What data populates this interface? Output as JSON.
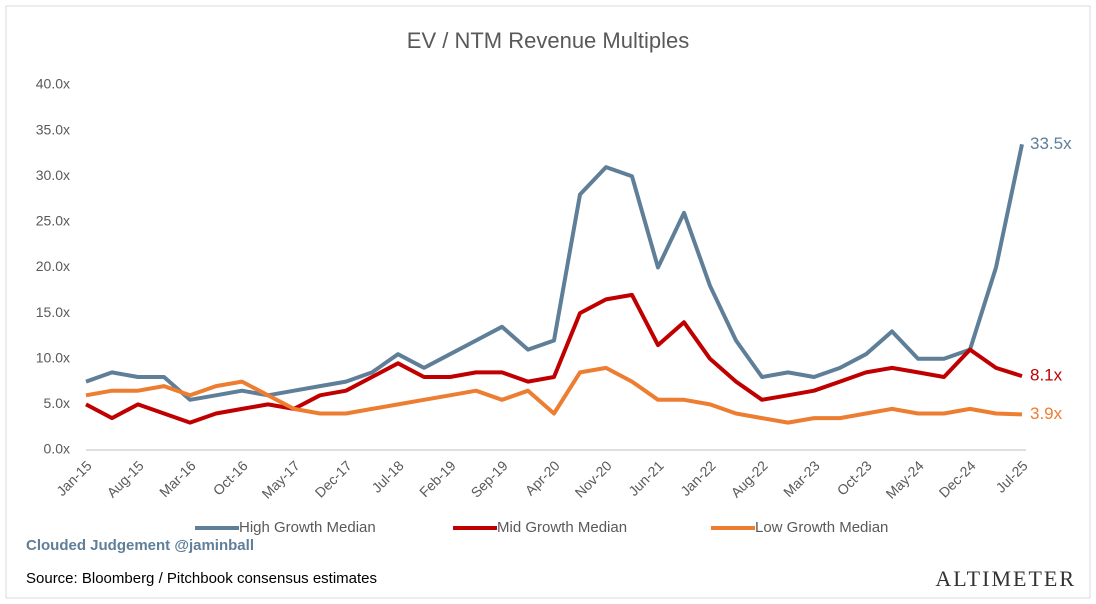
{
  "chart_data": {
    "type": "line",
    "title": "EV / NTM Revenue Multiples",
    "categories": [
      "Jan-15",
      null,
      "Aug-15",
      null,
      "Mar-16",
      null,
      "Oct-16",
      null,
      "May-17",
      null,
      "Dec-17",
      null,
      "Jul-18",
      null,
      "Feb-19",
      null,
      "Sep-19",
      null,
      "Apr-20",
      null,
      "Nov-20",
      null,
      "Jun-21",
      null,
      "Jan-22",
      null,
      "Aug-22",
      null,
      "Mar-23",
      null,
      "Oct-23",
      null,
      "May-24",
      null,
      "Dec-24",
      null,
      "Jul-25"
    ],
    "series": [
      {
        "name": "High Growth Median",
        "color": "#5f7f99",
        "values": [
          7.5,
          8.5,
          8,
          8,
          5.5,
          6,
          6.5,
          6,
          6.5,
          7,
          7.5,
          8.5,
          10.5,
          9,
          10.5,
          12,
          13.5,
          11,
          12,
          28,
          31,
          30,
          20,
          26,
          18,
          12,
          8,
          8.5,
          8,
          9,
          10.5,
          13,
          10,
          10,
          11,
          20,
          33.5
        ],
        "value_labels": [
          null,
          null,
          null,
          null,
          null,
          null,
          null,
          null,
          null,
          null,
          null,
          null,
          null,
          null,
          null,
          null,
          null,
          null,
          null,
          null,
          null,
          null,
          null,
          null,
          null,
          null,
          null,
          null,
          null,
          null,
          null,
          null,
          null,
          null,
          null,
          null,
          "33.5x"
        ]
      },
      {
        "name": "Mid Growth Median",
        "color": "#c00000",
        "values": [
          5,
          3.5,
          5,
          4,
          3,
          4,
          4.5,
          5,
          4.5,
          6,
          6.5,
          8,
          9.5,
          8,
          8,
          8.5,
          8.5,
          7.5,
          8,
          15,
          16.5,
          17,
          11.5,
          14,
          10,
          7.5,
          5.5,
          6,
          6.5,
          7.5,
          8.5,
          9,
          8.5,
          8,
          11,
          9,
          8.1
        ],
        "value_labels": [
          null,
          null,
          null,
          null,
          null,
          null,
          null,
          null,
          null,
          null,
          null,
          null,
          null,
          null,
          null,
          null,
          null,
          null,
          null,
          null,
          null,
          null,
          null,
          null,
          null,
          null,
          null,
          null,
          null,
          null,
          null,
          null,
          null,
          null,
          null,
          null,
          "8.1x"
        ]
      },
      {
        "name": "Low Growth Median",
        "color": "#ed7d31",
        "values": [
          6,
          6.5,
          6.5,
          7,
          6,
          7,
          7.5,
          6,
          4.5,
          4,
          4,
          4.5,
          5,
          5.5,
          6,
          6.5,
          5.5,
          6.5,
          4,
          8.5,
          9,
          7.5,
          5.5,
          5.5,
          5,
          4,
          3.5,
          3,
          3.5,
          3.5,
          4,
          4.5,
          4,
          4,
          4.5,
          4,
          3.9
        ],
        "value_labels": [
          null,
          null,
          null,
          null,
          null,
          null,
          null,
          null,
          null,
          null,
          null,
          null,
          null,
          null,
          null,
          null,
          null,
          null,
          null,
          null,
          null,
          null,
          null,
          null,
          null,
          null,
          null,
          null,
          null,
          null,
          null,
          null,
          null,
          null,
          null,
          null,
          "3.9x"
        ]
      }
    ],
    "ylim": [
      0,
      40
    ],
    "yticks": [
      {
        "value": 0,
        "label": "0.0x"
      },
      {
        "value": 5,
        "label": "5.0x"
      },
      {
        "value": 10,
        "label": "10.0x"
      },
      {
        "value": 15,
        "label": "15.0x"
      },
      {
        "value": 20,
        "label": "20.0x"
      },
      {
        "value": 25,
        "label": "25.0x"
      },
      {
        "value": 30,
        "label": "30.0x"
      },
      {
        "value": 35,
        "label": "35.0x"
      },
      {
        "value": 40,
        "label": "40.0x"
      }
    ],
    "grid": false,
    "legend": "bottom",
    "annotations": [
      "Clouded Judgement @jaminball",
      "Source: Bloomberg / Pitchbook consensus estimates",
      "Altimeter"
    ]
  }
}
